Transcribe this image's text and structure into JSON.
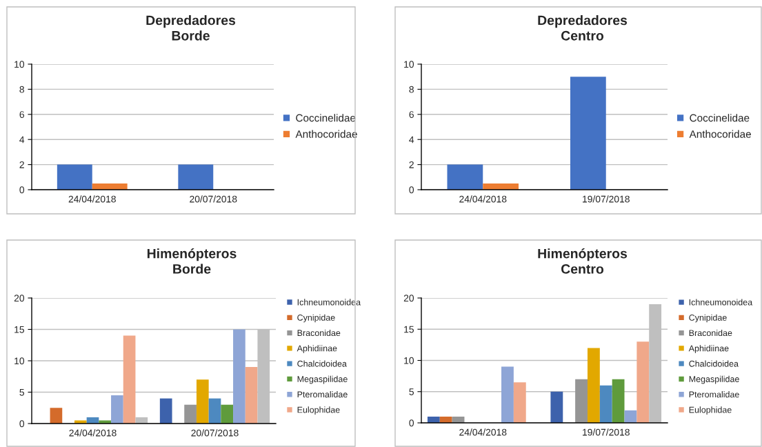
{
  "chart_data": [
    {
      "type": "bar",
      "title": "Depredadores\nBorde",
      "categories": [
        "24/04/2018",
        "20/07/2018"
      ],
      "ylim": [
        0,
        10
      ],
      "yticks": [
        0,
        2,
        4,
        6,
        8,
        10
      ],
      "grid": "y",
      "legend": "right",
      "series": [
        {
          "name": "Coccinelidae",
          "color": "#4472c4",
          "values": [
            2,
            2
          ]
        },
        {
          "name": "Anthocoridae",
          "color": "#ed7d31",
          "values": [
            0.5,
            0
          ]
        }
      ]
    },
    {
      "type": "bar",
      "title": "Depredadores\nCentro",
      "categories": [
        "24/04/2018",
        "19/07/2018"
      ],
      "ylim": [
        0,
        10
      ],
      "yticks": [
        0,
        2,
        4,
        6,
        8,
        10
      ],
      "grid": "y",
      "legend": "right",
      "series": [
        {
          "name": "Coccinelidae",
          "color": "#4472c4",
          "values": [
            2,
            9
          ]
        },
        {
          "name": "Anthocoridae",
          "color": "#ed7d31",
          "values": [
            0.5,
            0
          ]
        }
      ]
    },
    {
      "type": "bar",
      "title": "Himenópteros\nBorde",
      "categories": [
        "24/04/2018",
        "20/07/2018"
      ],
      "ylim": [
        0,
        20
      ],
      "yticks": [
        0,
        5,
        10,
        15,
        20
      ],
      "grid": "y",
      "legend": "right",
      "series": [
        {
          "name": "Ichneumonoidea",
          "color": "#3d62ac",
          "values": [
            0,
            4
          ]
        },
        {
          "name": "Cynipidae",
          "color": "#d46b2b",
          "values": [
            2.5,
            0
          ]
        },
        {
          "name": "Braconidae",
          "color": "#959595",
          "values": [
            0,
            3
          ]
        },
        {
          "name": "Aphidiinae",
          "color": "#e2a800",
          "values": [
            0.5,
            7
          ]
        },
        {
          "name": "Chalcidoidea",
          "color": "#4d89c0",
          "values": [
            1,
            4
          ]
        },
        {
          "name": "Megaspilidae",
          "color": "#5f9b3c",
          "values": [
            0.5,
            3
          ]
        },
        {
          "name": "Pteromalidae",
          "color": "#8ea5d6",
          "values": [
            4.5,
            15
          ]
        },
        {
          "name": "Eulophidae",
          "color": "#f0a88a",
          "values": [
            14,
            9
          ]
        },
        {
          "color": "#bfbfbf",
          "values": [
            1,
            15
          ]
        }
      ]
    },
    {
      "type": "bar",
      "title": "Himenópteros\nCentro",
      "categories": [
        "24/04/2018",
        "19/07/2018"
      ],
      "ylim": [
        0,
        20
      ],
      "yticks": [
        0,
        5,
        10,
        15,
        20
      ],
      "grid": "y",
      "legend": "right",
      "series": [
        {
          "name": "Ichneumonoidea",
          "color": "#3d62ac",
          "values": [
            1,
            5
          ]
        },
        {
          "name": "Cynipidae",
          "color": "#d46b2b",
          "values": [
            1,
            0
          ]
        },
        {
          "name": "Braconidae",
          "color": "#959595",
          "values": [
            1,
            7
          ]
        },
        {
          "name": "Aphidiinae",
          "color": "#e2a800",
          "values": [
            0,
            12
          ]
        },
        {
          "name": "Chalcidoidea",
          "color": "#4d89c0",
          "values": [
            0,
            6
          ]
        },
        {
          "name": "Megaspilidae",
          "color": "#5f9b3c",
          "values": [
            0,
            7
          ]
        },
        {
          "name": "Pteromalidae",
          "color": "#8ea5d6",
          "values": [
            9,
            2
          ]
        },
        {
          "name": "Eulophidae",
          "color": "#f0a88a",
          "values": [
            6.5,
            13
          ]
        },
        {
          "color": "#bfbfbf",
          "values": [
            0,
            19
          ]
        }
      ]
    }
  ]
}
